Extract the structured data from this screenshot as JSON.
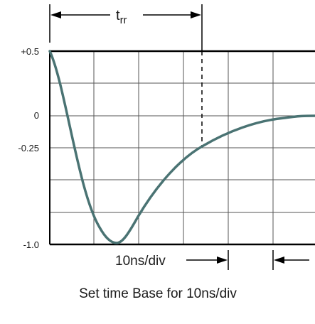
{
  "diagram": {
    "y_labels": {
      "plus_half": "+0.5",
      "zero": "0",
      "minus_quarter": "-0.25",
      "minus_one": "-1.0"
    },
    "trr_label_main": "t",
    "trr_label_sub": "rr",
    "timebase_label": "10ns/div",
    "caption": "Set time Base for 10ns/div",
    "colors": {
      "curve": "#4a7373",
      "grid": "#555555",
      "axis": "#000000",
      "text": "#1a1a1a"
    }
  }
}
